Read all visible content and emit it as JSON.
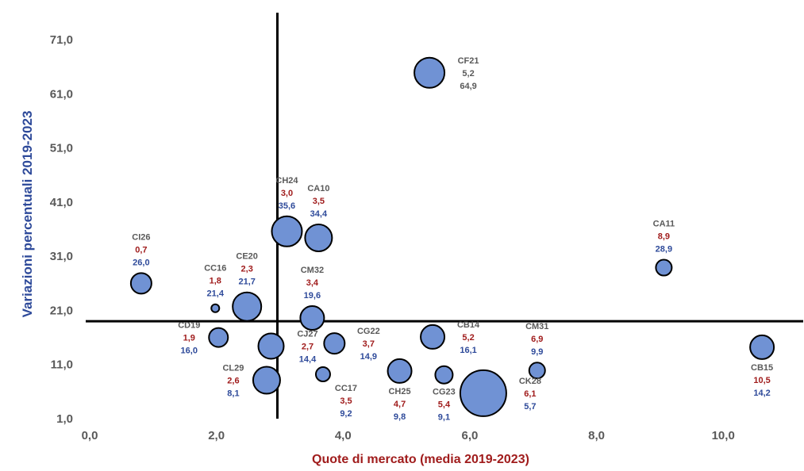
{
  "chart_data": {
    "type": "scatter",
    "subtype": "bubble",
    "xlabel": "Quote di mercato (media 2019-2023)",
    "ylabel": "Variazioni percentuali 2019-2023",
    "xlim": [
      0,
      11.1
    ],
    "ylim": [
      1,
      76
    ],
    "x_ticks": [
      "0,0",
      "2,0",
      "4,0",
      "6,0",
      "8,0",
      "10,0"
    ],
    "y_ticks": [
      "1,0",
      "11,0",
      "21,0",
      "31,0",
      "41,0",
      "51,0",
      "61,0",
      "71,0"
    ],
    "x_tick_values": [
      0,
      2,
      4,
      6,
      8,
      10
    ],
    "y_tick_values": [
      1,
      11,
      21,
      31,
      41,
      51,
      61,
      71
    ],
    "reference_lines": {
      "x": 2.8,
      "y": 19.0
    },
    "grid": false,
    "colors": {
      "bubble": "#7092d4",
      "x_value": "#a01c1c",
      "y_value": "#2e4a9a",
      "name": "#595959"
    },
    "points": [
      {
        "name": "CF21",
        "x": 5.2,
        "y": 64.9,
        "x_label": "5,2",
        "y_label": "64,9",
        "r": 19,
        "label_pos": "right",
        "label_color": "gray"
      },
      {
        "name": "CH24",
        "x": 2.95,
        "y": 35.6,
        "x_label": "3,0",
        "y_label": "35,6",
        "r": 19,
        "label_pos": "above"
      },
      {
        "name": "CA10",
        "x": 3.45,
        "y": 34.4,
        "x_label": "3,5",
        "y_label": "34,4",
        "r": 17,
        "label_pos": "above"
      },
      {
        "name": "CI26",
        "x": 0.65,
        "y": 26.0,
        "x_label": "0,7",
        "y_label": "26,0",
        "r": 13,
        "label_pos": "above"
      },
      {
        "name": "CC16",
        "x": 1.82,
        "y": 21.4,
        "x_label": "1,8",
        "y_label": "21,4",
        "r": 5,
        "label_pos": "above"
      },
      {
        "name": "CE20",
        "x": 2.32,
        "y": 21.7,
        "x_label": "2,3",
        "y_label": "21,7",
        "r": 18,
        "label_pos": "above"
      },
      {
        "name": "CM32",
        "x": 3.35,
        "y": 19.6,
        "x_label": "3,4",
        "y_label": "19,6",
        "r": 15,
        "label_pos": "above"
      },
      {
        "name": "CA11",
        "x": 8.9,
        "y": 28.9,
        "x_label": "8,9",
        "y_label": "28,9",
        "r": 10,
        "label_pos": "above"
      },
      {
        "name": "CD19",
        "x": 1.87,
        "y": 16.0,
        "x_label": "1,9",
        "y_label": "16,0",
        "r": 12,
        "label_pos": "left"
      },
      {
        "name": "CJ27",
        "x": 2.7,
        "y": 14.4,
        "x_label": "2,7",
        "y_label": "14,4",
        "r": 16,
        "label_pos": "right"
      },
      {
        "name": "CG22",
        "x": 3.7,
        "y": 14.9,
        "x_label": "3,7",
        "y_label": "14,9",
        "r": 13,
        "label_pos": "right"
      },
      {
        "name": "CB14",
        "x": 5.25,
        "y": 16.1,
        "x_label": "5,2",
        "y_label": "16,1",
        "r": 15,
        "label_pos": "right"
      },
      {
        "name": "CM31",
        "x": 6.9,
        "y": 9.9,
        "x_label": "6,9",
        "y_label": "9,9",
        "r": 10,
        "label_pos": "above"
      },
      {
        "name": "CB15",
        "x": 10.45,
        "y": 14.2,
        "x_label": "10,5",
        "y_label": "14,2",
        "r": 15,
        "label_pos": "below"
      },
      {
        "name": "CL29",
        "x": 2.63,
        "y": 8.1,
        "x_label": "2,6",
        "y_label": "8,1",
        "r": 17,
        "label_pos": "left"
      },
      {
        "name": "CC17",
        "x": 3.52,
        "y": 9.2,
        "x_label": "3,5",
        "y_label": "9,2",
        "r": 9,
        "label_pos": "below-right"
      },
      {
        "name": "CH25",
        "x": 4.73,
        "y": 9.8,
        "x_label": "4,7",
        "y_label": "9,8",
        "r": 15,
        "label_pos": "below"
      },
      {
        "name": "CG23",
        "x": 5.43,
        "y": 9.1,
        "x_label": "5,4",
        "y_label": "9,1",
        "r": 11,
        "label_pos": "below-left"
      },
      {
        "name": "CK28",
        "x": 6.05,
        "y": 5.7,
        "x_label": "6,1",
        "y_label": "5,7",
        "r": 29,
        "label_pos": "right"
      }
    ]
  }
}
